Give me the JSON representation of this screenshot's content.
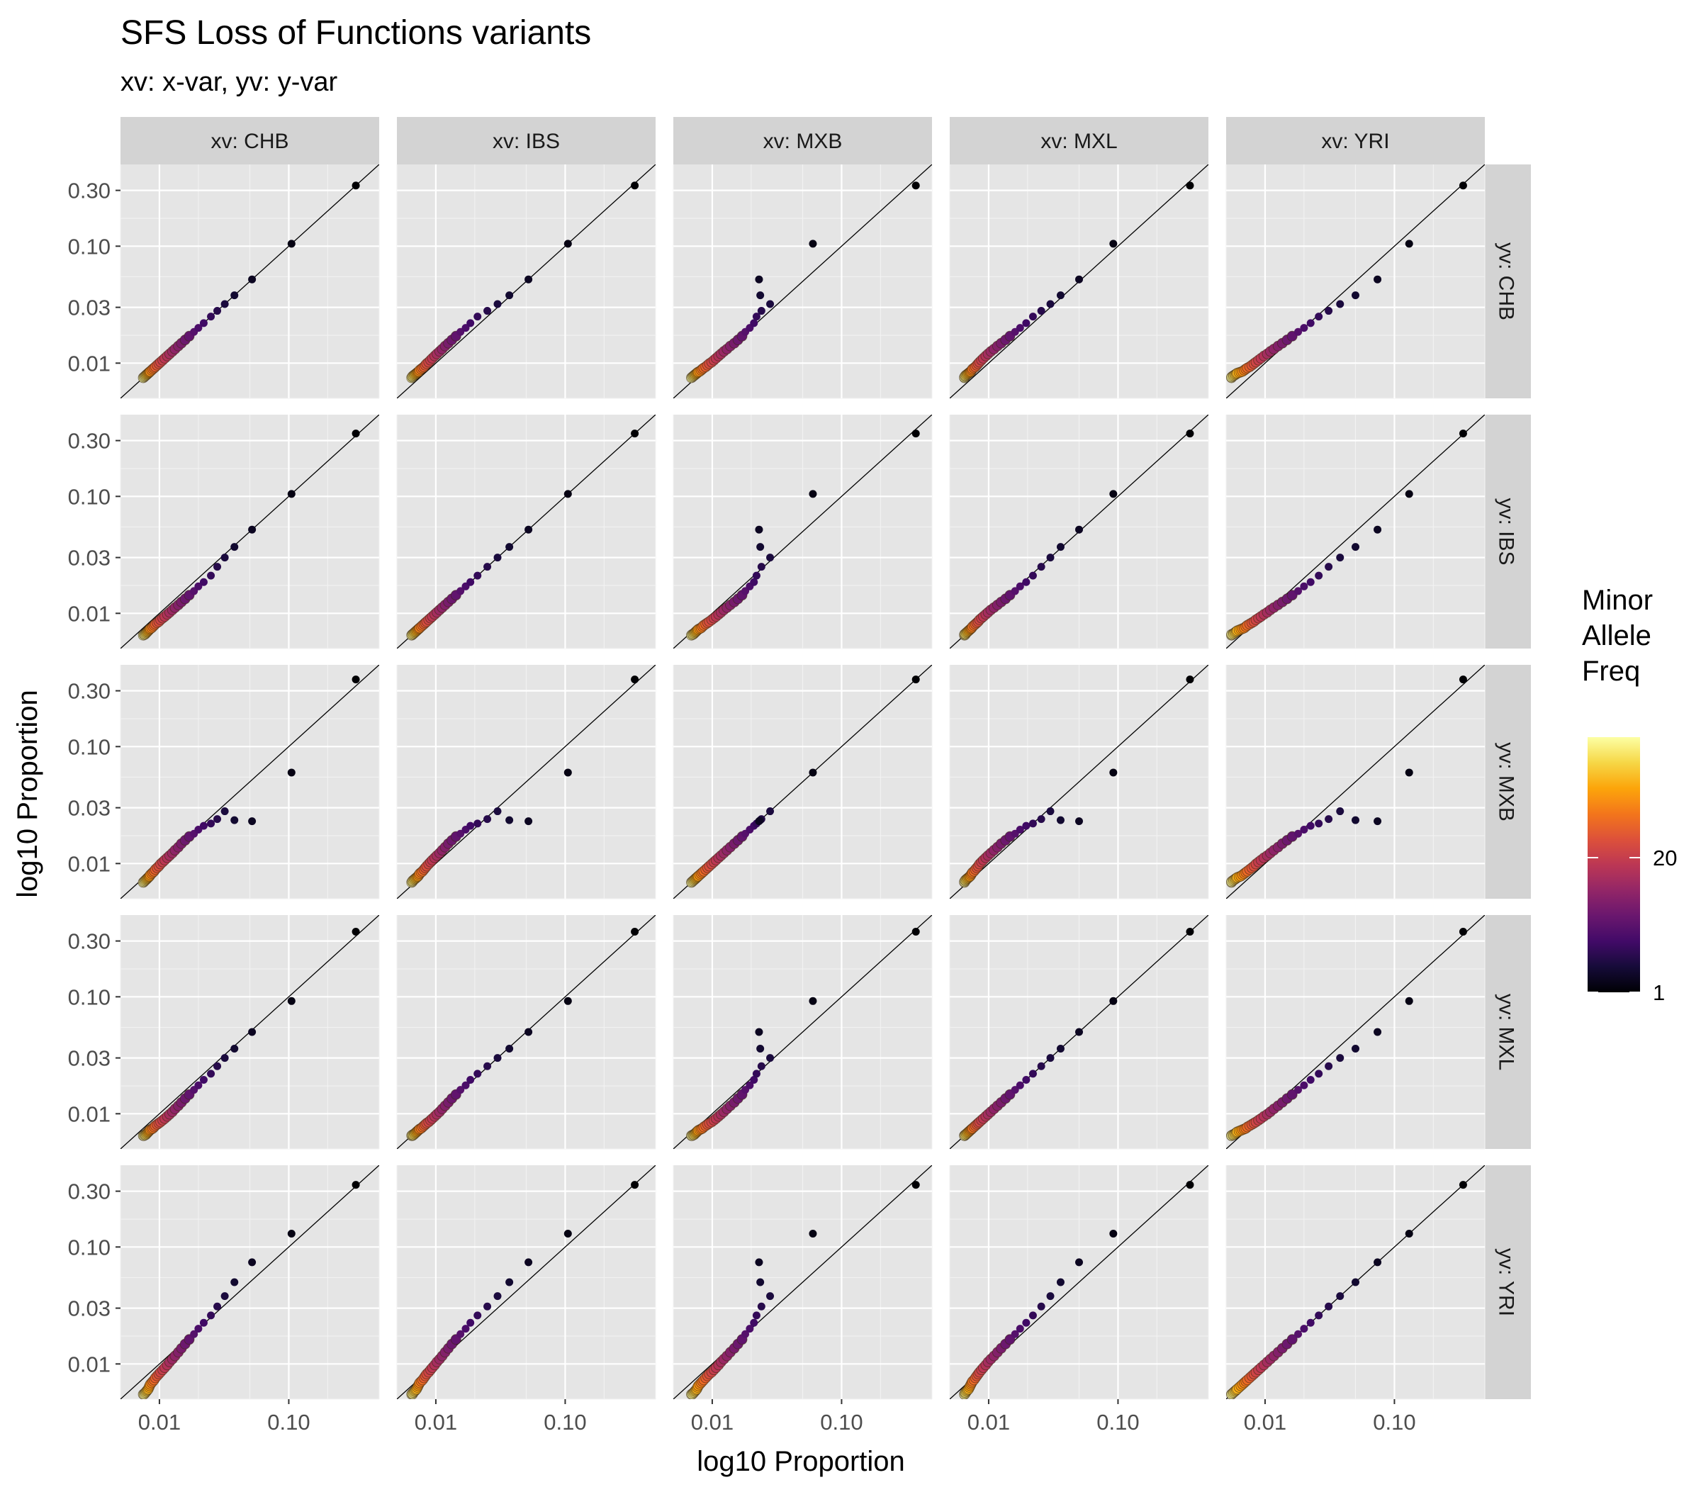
{
  "chart_data": {
    "type": "scatter",
    "title": "SFS Loss of Functions variants",
    "subtitle": "xv: x-var, yv: y-var",
    "xlabel": "log10  Proportion",
    "ylabel": "log10  Proportion",
    "x_scale": "log10",
    "y_scale": "log10",
    "xlim": [
      0.005,
      0.5
    ],
    "ylim": [
      0.005,
      0.5
    ],
    "x_ticks": [
      0.01,
      0.1
    ],
    "x_tick_labels": [
      "0.01",
      "0.10"
    ],
    "y_ticks": [
      0.01,
      0.03,
      0.1,
      0.3
    ],
    "y_tick_labels": [
      "0.01",
      "0.03",
      "0.10",
      "0.30"
    ],
    "reference_line": "y = x",
    "grid": true,
    "facet_columns": [
      "xv: CHB",
      "xv: IBS",
      "xv: MXB",
      "xv: MXL",
      "xv: YRI"
    ],
    "facet_rows": [
      "yv: CHB",
      "yv: IBS",
      "yv: MXB",
      "yv: MXL",
      "yv: YRI"
    ],
    "legend": {
      "title": "Minor Allele Freq",
      "title_lines": [
        "Minor",
        "Allele",
        "Freq"
      ],
      "position": "right",
      "color_scale": "inferno",
      "ticks": [
        1,
        20
      ],
      "tick_labels": [
        "1",
        "20"
      ],
      "range": [
        1,
        37
      ]
    },
    "populations": {
      "CHB": {
        "singleton": 0.33,
        "doubleton": 0.105,
        "tripleton": 0.052,
        "tail": [
          0.038,
          0.032,
          0.028,
          0.025,
          0.022,
          0.02,
          0.0185,
          0.017,
          0.0158,
          0.0148,
          0.014,
          0.0132,
          0.0126,
          0.012,
          0.0115,
          0.011,
          0.0106,
          0.0102,
          0.0099,
          0.0096,
          0.0093,
          0.0091,
          0.0089,
          0.0087,
          0.0085,
          0.0084,
          0.0083,
          0.0082,
          0.0081,
          0.008,
          0.0079,
          0.0078,
          0.0077,
          0.0076,
          0.0075
        ]
      },
      "IBS": {
        "singleton": 0.345,
        "doubleton": 0.105,
        "tripleton": 0.052,
        "tail": [
          0.037,
          0.03,
          0.025,
          0.021,
          0.0185,
          0.017,
          0.0155,
          0.0143,
          0.0133,
          0.0125,
          0.0118,
          0.0112,
          0.0107,
          0.0102,
          0.0098,
          0.0094,
          0.0091,
          0.0088,
          0.0085,
          0.0083,
          0.0081,
          0.0079,
          0.0077,
          0.0075,
          0.0074,
          0.0073,
          0.0072,
          0.0071,
          0.007,
          0.0069,
          0.0068,
          0.0067,
          0.0066,
          0.0066,
          0.0065
        ]
      },
      "MXB": {
        "singleton": 0.375,
        "doubleton": 0.06,
        "tripleton": 0.023,
        "tail": [
          0.0235,
          0.028,
          0.024,
          0.022,
          0.021,
          0.0195,
          0.018,
          0.017,
          0.0158,
          0.0148,
          0.0138,
          0.013,
          0.0123,
          0.0117,
          0.0112,
          0.0107,
          0.0103,
          0.0099,
          0.0095,
          0.0092,
          0.0089,
          0.0086,
          0.0084,
          0.0082,
          0.008,
          0.0078,
          0.0077,
          0.0076,
          0.0075,
          0.0074,
          0.0073,
          0.0072,
          0.0071,
          0.007,
          0.0069
        ]
      },
      "MXL": {
        "singleton": 0.36,
        "doubleton": 0.092,
        "tripleton": 0.05,
        "tail": [
          0.036,
          0.03,
          0.0255,
          0.022,
          0.0195,
          0.0175,
          0.016,
          0.0146,
          0.0135,
          0.0125,
          0.0117,
          0.011,
          0.0104,
          0.0099,
          0.0095,
          0.0091,
          0.0088,
          0.0085,
          0.0083,
          0.0081,
          0.0079,
          0.0077,
          0.0075,
          0.0074,
          0.0073,
          0.0072,
          0.0071,
          0.007,
          0.0069,
          0.0068,
          0.0067,
          0.0066,
          0.0066,
          0.0065,
          0.0065
        ]
      },
      "YRI": {
        "singleton": 0.34,
        "doubleton": 0.13,
        "tripleton": 0.074,
        "tail": [
          0.05,
          0.038,
          0.031,
          0.026,
          0.0225,
          0.02,
          0.018,
          0.0162,
          0.0148,
          0.0136,
          0.0126,
          0.0117,
          0.011,
          0.0104,
          0.0098,
          0.0093,
          0.0089,
          0.0085,
          0.0082,
          0.0079,
          0.0076,
          0.0073,
          0.0071,
          0.0069,
          0.0067,
          0.0065,
          0.0063,
          0.0061,
          0.006,
          0.0059,
          0.0058,
          0.0057,
          0.0056,
          0.0055,
          0.0055
        ]
      }
    }
  }
}
